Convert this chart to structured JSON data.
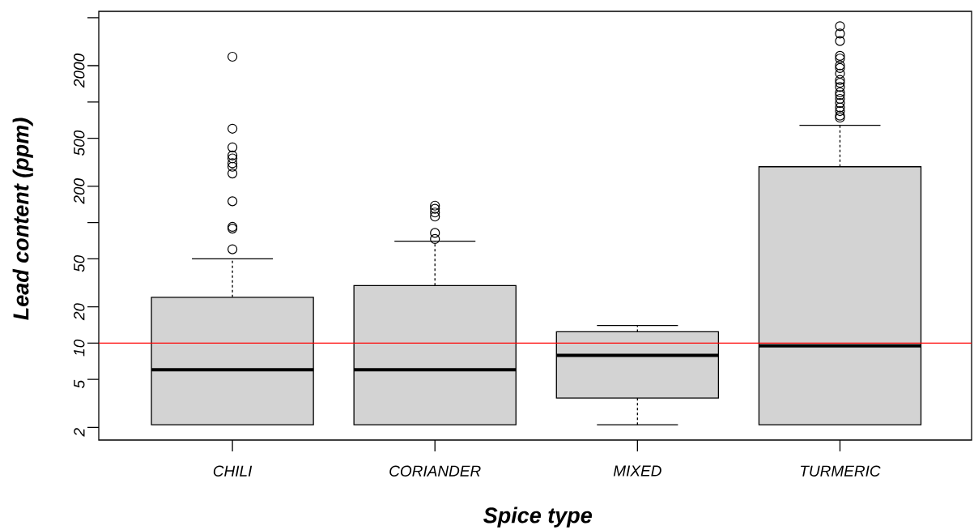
{
  "chart_data": {
    "type": "box",
    "xlabel": "Spice type",
    "ylabel": "Lead content (ppm)",
    "categories": [
      "CHILI",
      "CORIANDER",
      "MIXED",
      "TURMERIC"
    ],
    "series": [
      {
        "color": "#d3d3d3",
        "boxes": [
          {
            "low": 2.1,
            "q1": 2.1,
            "median": 6,
            "q3": 24,
            "high": 50,
            "outliers": [
              60,
              89,
              92,
              150,
              255,
              290,
              310,
              340,
              360,
              420,
              600,
              2370
            ]
          },
          {
            "low": 2.1,
            "q1": 2.1,
            "median": 6,
            "q3": 30,
            "high": 70,
            "outliers": [
              73,
              82,
              112,
              121,
              130,
              138
            ]
          },
          {
            "low": 2.1,
            "q1": 3.5,
            "median": 7.9,
            "q3": 12.4,
            "high": 14
          },
          {
            "low": 2.1,
            "q1": 2.1,
            "median": 9.5,
            "q3": 290,
            "high": 640,
            "outliers": [
              740,
              770,
              840,
              900,
              980,
              1060,
              1140,
              1200,
              1330,
              1440,
              1520,
              1720,
              1910,
              2010,
              2290,
              2410,
              3200,
              3690,
              4250
            ]
          }
        ]
      }
    ],
    "log": "y",
    "ylim": [
      1.57,
      5640
    ],
    "yticks": [
      2,
      5,
      10,
      20,
      50,
      {
        "value": 100,
        "label": null
      },
      200,
      500,
      {
        "value": 1000,
        "label": null
      },
      2000,
      {
        "value": 5000,
        "label": null
      }
    ],
    "ref_lines": [
      {
        "axis": "y",
        "value": 10,
        "color": "#ff0000"
      }
    ]
  }
}
